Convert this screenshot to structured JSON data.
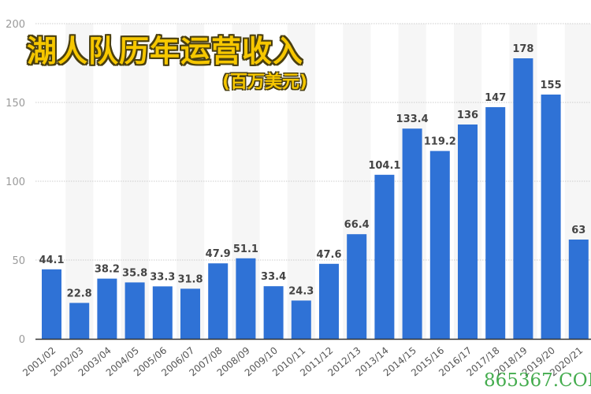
{
  "title": "湖人队历年运营收入",
  "subtitle": "(百万美元)",
  "watermark": "865367.COM",
  "colors": {
    "bar": "#2f72d6",
    "stripe": "#f6f6f6",
    "grid": "#cccccc",
    "axis": "#333333",
    "title": "#f6c700",
    "watermark": "#3aa845"
  },
  "chart_data": {
    "type": "bar",
    "title": "湖人队历年运营收入",
    "subtitle": "(百万美元)",
    "xlabel": "",
    "ylabel": "",
    "ylim": [
      0,
      200
    ],
    "yticks": [
      0,
      50,
      100,
      150,
      200
    ],
    "grid": true,
    "legend": null,
    "categories": [
      "2001/02",
      "2002/03",
      "2003/04",
      "2004/05",
      "2005/06",
      "2006/07",
      "2007/08",
      "2008/09",
      "2009/10",
      "2010/11",
      "2011/12",
      "2012/13",
      "2013/14",
      "2014/15",
      "2015/16",
      "2016/17",
      "2017/18",
      "2018/19",
      "2019/20",
      "2020/21"
    ],
    "values": [
      44.1,
      22.8,
      38.2,
      35.8,
      33.3,
      31.8,
      47.9,
      51.1,
      33.4,
      24.3,
      47.6,
      66.4,
      104.1,
      133.4,
      119.2,
      136,
      147,
      178,
      155,
      63
    ],
    "value_labels": [
      "44.1",
      "22.8",
      "38.2",
      "35.8",
      "33.3",
      "31.8",
      "47.9",
      "51.1",
      "33.4",
      "24.3",
      "47.6",
      "66.4",
      "104.1",
      "133.4",
      "119.2",
      "136",
      "147",
      "178",
      "155",
      "63"
    ]
  }
}
